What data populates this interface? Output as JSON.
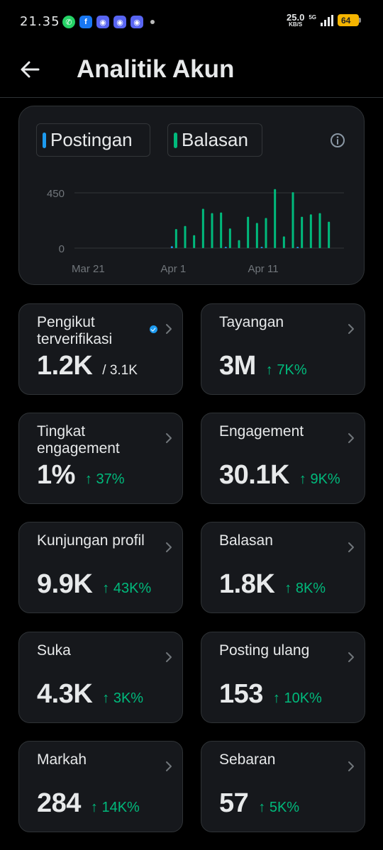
{
  "status_bar": {
    "time": "21.35",
    "net_speed": "25.0",
    "net_speed_unit": "KB/S",
    "network_type": "5G",
    "battery": "64",
    "notification_icons": [
      "whatsapp-icon",
      "facebook-icon",
      "discord-icon",
      "discord-icon",
      "discord-icon"
    ]
  },
  "header": {
    "title": "Analitik Akun"
  },
  "chart": {
    "legend": [
      {
        "label": "Postingan",
        "color": "#1d9bf0"
      },
      {
        "label": "Balasan",
        "color": "#00ba7c"
      }
    ]
  },
  "chart_data": {
    "type": "bar",
    "ytick_labels": [
      "0",
      "450"
    ],
    "xtick_labels": [
      "Mar 21",
      "Apr 1",
      "Apr 11"
    ],
    "ylim": [
      0,
      500
    ],
    "grid": true,
    "series": [
      {
        "name": "Balasan",
        "color": "#00ba7c",
        "values": [
          0,
          0,
          0,
          0,
          0,
          0,
          0,
          0,
          0,
          0,
          0,
          0,
          0,
          0,
          0,
          0,
          0,
          0,
          0,
          0,
          5,
          0,
          0,
          0,
          0,
          0,
          0,
          0,
          0,
          5,
          0,
          0,
          0,
          0,
          0,
          0,
          0,
          0,
          0,
          0,
          0,
          0,
          0,
          0,
          0,
          0,
          0,
          0,
          0,
          0,
          0,
          0,
          0,
          0,
          0
        ]
      }
    ],
    "bars": [
      {
        "date": "Apr 1",
        "value": 155
      },
      {
        "date": "Apr 2",
        "value": 180
      },
      {
        "date": "Apr 3",
        "value": 105
      },
      {
        "date": "Apr 4",
        "value": 320
      },
      {
        "date": "Apr 5",
        "value": 285
      },
      {
        "date": "Apr 6",
        "value": 290
      },
      {
        "date": "Apr 7",
        "value": 160
      },
      {
        "date": "Apr 8",
        "value": 65
      },
      {
        "date": "Apr 9",
        "value": 255
      },
      {
        "date": "Apr 10",
        "value": 205
      },
      {
        "date": "Apr 11",
        "value": 245
      },
      {
        "date": "Apr 12",
        "value": 480
      },
      {
        "date": "Apr 13",
        "value": 95
      },
      {
        "date": "Apr 14",
        "value": 455
      },
      {
        "date": "Apr 15",
        "value": 255
      },
      {
        "date": "Apr 16",
        "value": 275
      },
      {
        "date": "Apr 17",
        "value": 285
      },
      {
        "date": "Apr 18",
        "value": 215
      }
    ],
    "posts": [
      {
        "date": "Apr 1",
        "value": 15
      },
      {
        "date": "Apr 7",
        "value": 10
      },
      {
        "date": "Apr 11",
        "value": 10
      },
      {
        "date": "Apr 15",
        "value": 10
      }
    ]
  },
  "stats": [
    {
      "label": "Pengikut terverifikasi",
      "value": "1.2K",
      "total": "/ 3.1K",
      "change": "",
      "verified": true
    },
    {
      "label": "Tayangan",
      "value": "3M",
      "total": "",
      "change": "↑ 7K%"
    },
    {
      "label": "Tingkat engagement",
      "value": "1%",
      "total": "",
      "change": "↑ 37%"
    },
    {
      "label": "Engagement",
      "value": "30.1K",
      "total": "",
      "change": "↑ 9K%"
    },
    {
      "label": "Kunjungan profil",
      "value": "9.9K",
      "total": "",
      "change": "↑ 43K%"
    },
    {
      "label": "Balasan",
      "value": "1.8K",
      "total": "",
      "change": "↑ 8K%"
    },
    {
      "label": "Suka",
      "value": "4.3K",
      "total": "",
      "change": "↑ 3K%"
    },
    {
      "label": "Posting ulang",
      "value": "153",
      "total": "",
      "change": "↑ 10K%"
    },
    {
      "label": "Markah",
      "value": "284",
      "total": "",
      "change": "↑ 14K%"
    },
    {
      "label": "Sebaran",
      "value": "57",
      "total": "",
      "change": "↑ 5K%"
    }
  ],
  "colors": {
    "background": "#000000",
    "card": "#16181c",
    "positive": "#00ba7c",
    "accent_blue": "#1d9bf0"
  }
}
